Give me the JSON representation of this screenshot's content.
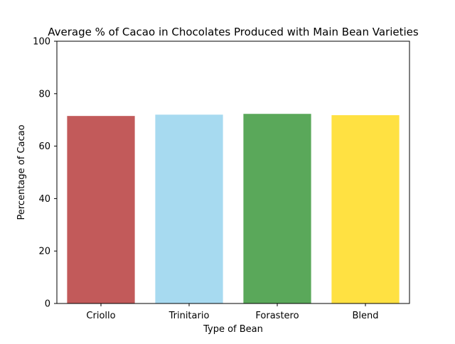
{
  "chart_data": {
    "type": "bar",
    "title": "Average % of Cacao in Chocolates Produced with Main Bean Varieties",
    "xlabel": "Type of Bean",
    "ylabel": "Percentage of Cacao",
    "categories": [
      "Criollo",
      "Trinitario",
      "Forastero",
      "Blend"
    ],
    "values": [
      71.5,
      72.0,
      72.3,
      71.8
    ],
    "colors": [
      "#c25a5a",
      "#a7daf0",
      "#5aa85a",
      "#ffe142"
    ],
    "ylim": [
      0,
      100
    ],
    "yticks": [
      "0",
      "20",
      "40",
      "60",
      "80",
      "100"
    ],
    "grid": false,
    "legend": "none"
  }
}
